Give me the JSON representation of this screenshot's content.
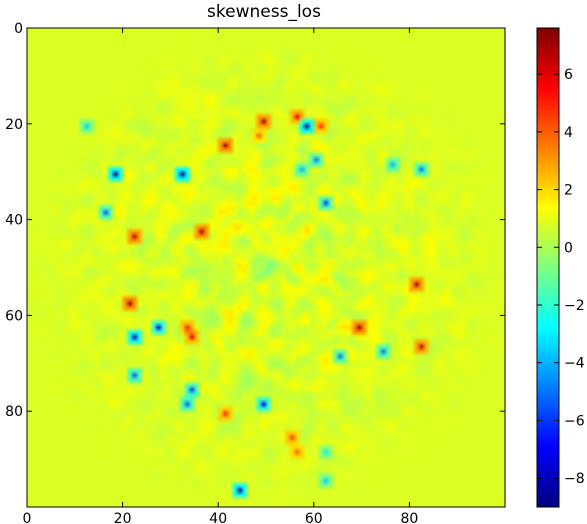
{
  "chart_data": {
    "type": "heatmap",
    "title": "skewness_los",
    "xlabel": "",
    "ylabel": "",
    "xlim": [
      0,
      99
    ],
    "ylim": [
      0,
      99
    ],
    "y_axis_inverted": true,
    "x_tick_labels": [
      "0",
      "20",
      "40",
      "60",
      "80"
    ],
    "y_tick_labels": [
      "0",
      "20",
      "40",
      "60",
      "80"
    ],
    "x_ticks": [
      0,
      20,
      40,
      60,
      80
    ],
    "y_ticks": [
      0,
      20,
      40,
      60,
      80
    ],
    "colormap": "jet",
    "colorbar": {
      "vmin": -9,
      "vmax": 7.6,
      "tick_values": [
        -8,
        -6,
        -4,
        -2,
        0,
        2,
        4,
        6
      ],
      "tick_labels": [
        "−8",
        "−6",
        "−4",
        "−2",
        "0",
        "2",
        "4",
        "6"
      ]
    },
    "background_value": 0.8,
    "disk": {
      "center": [
        50,
        50
      ],
      "radius": 45
    },
    "hot_spots": [
      {
        "x": 49,
        "y": 19,
        "value": 7.0
      },
      {
        "x": 56,
        "y": 18,
        "value": 6.0
      },
      {
        "x": 41,
        "y": 24,
        "value": 7.0
      },
      {
        "x": 61,
        "y": 20,
        "value": 5.0
      },
      {
        "x": 22,
        "y": 43,
        "value": 6.5
      },
      {
        "x": 36,
        "y": 42,
        "value": 7.0
      },
      {
        "x": 21,
        "y": 57,
        "value": 7.0
      },
      {
        "x": 81,
        "y": 53,
        "value": 7.0
      },
      {
        "x": 69,
        "y": 62,
        "value": 7.0
      },
      {
        "x": 34,
        "y": 64,
        "value": 6.0
      },
      {
        "x": 82,
        "y": 66,
        "value": 6.5
      },
      {
        "x": 41,
        "y": 80,
        "value": 5.0
      },
      {
        "x": 55,
        "y": 85,
        "value": 4.5
      },
      {
        "x": 33,
        "y": 62,
        "value": 5.0
      },
      {
        "x": 48,
        "y": 22,
        "value": 4.0
      },
      {
        "x": 56,
        "y": 88,
        "value": 4.0
      }
    ],
    "cold_spots": [
      {
        "x": 18,
        "y": 30,
        "value": -9.0
      },
      {
        "x": 32,
        "y": 30,
        "value": -9.0
      },
      {
        "x": 58,
        "y": 20,
        "value": -9.0
      },
      {
        "x": 60,
        "y": 27,
        "value": -5.0
      },
      {
        "x": 62,
        "y": 36,
        "value": -6.0
      },
      {
        "x": 16,
        "y": 38,
        "value": -5.5
      },
      {
        "x": 27,
        "y": 62,
        "value": -7.0
      },
      {
        "x": 22,
        "y": 64,
        "value": -8.0
      },
      {
        "x": 22,
        "y": 72,
        "value": -5.5
      },
      {
        "x": 34,
        "y": 75,
        "value": -6.0
      },
      {
        "x": 33,
        "y": 78,
        "value": -5.5
      },
      {
        "x": 49,
        "y": 78,
        "value": -7.0
      },
      {
        "x": 44,
        "y": 96,
        "value": -8.5
      },
      {
        "x": 65,
        "y": 68,
        "value": -5.0
      },
      {
        "x": 74,
        "y": 67,
        "value": -5.0
      },
      {
        "x": 82,
        "y": 29,
        "value": -5.0
      },
      {
        "x": 76,
        "y": 28,
        "value": -4.0
      },
      {
        "x": 62,
        "y": 94,
        "value": -3.5
      },
      {
        "x": 57,
        "y": 29,
        "value": -4.0
      },
      {
        "x": 12,
        "y": 20,
        "value": -3.5
      },
      {
        "x": 62,
        "y": 88,
        "value": -3.0
      }
    ]
  }
}
